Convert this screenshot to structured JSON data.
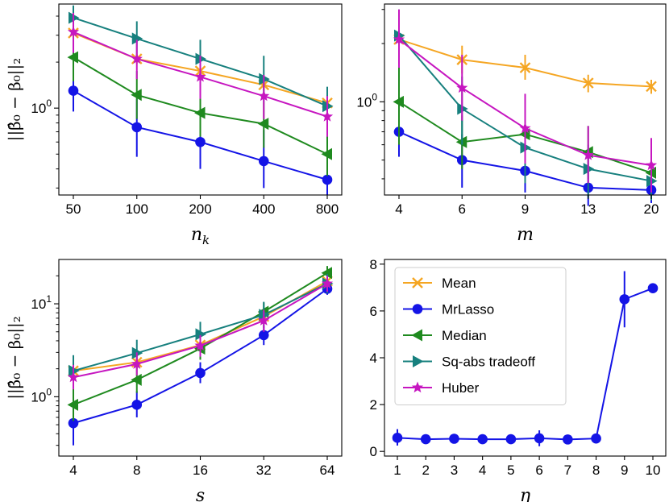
{
  "colors": {
    "Mean": "#f5a623",
    "MrLasso": "#1414e6",
    "Median": "#1f8a1f",
    "Sq-abs tradeoff": "#17807e",
    "Huber": "#c616c0"
  },
  "markers": {
    "Mean": "x",
    "MrLasso": "circle",
    "Median": "tri-left",
    "Sq-abs tradeoff": "tri-right",
    "Huber": "star"
  },
  "chart_data": [
    {
      "id": "p1",
      "type": "line",
      "yscale": "log",
      "ylim": [
        0.27,
        4.8
      ],
      "xlabel": "n_k",
      "ylabel": "||β̂₀ − β₀||₂",
      "categories": [
        "50",
        "100",
        "200",
        "400",
        "800"
      ],
      "yticks": [
        {
          "value": 1,
          "label": "10^0"
        }
      ],
      "series": [
        {
          "name": "Mean",
          "values": [
            3.1,
            2.1,
            1.75,
            1.42,
            1.08
          ],
          "err": [
            [
              2.9,
              3.3
            ],
            [
              1.95,
              2.25
            ],
            [
              1.6,
              1.9
            ],
            [
              1.3,
              1.55
            ],
            [
              0.98,
              1.2
            ]
          ]
        },
        {
          "name": "MrLasso",
          "values": [
            1.3,
            0.75,
            0.6,
            0.45,
            0.34
          ],
          "err": [
            [
              0.95,
              1.85
            ],
            [
              0.48,
              1.15
            ],
            [
              0.4,
              0.9
            ],
            [
              0.3,
              0.72
            ],
            [
              0.27,
              0.43
            ]
          ]
        },
        {
          "name": "Median",
          "values": [
            2.15,
            1.22,
            0.93,
            0.79,
            0.5
          ],
          "err": [
            [
              1.5,
              3.0
            ],
            [
              0.85,
              1.75
            ],
            [
              0.65,
              1.3
            ],
            [
              0.55,
              1.1
            ],
            [
              0.36,
              0.7
            ]
          ]
        },
        {
          "name": "Sq-abs tradeoff",
          "values": [
            3.9,
            2.85,
            2.1,
            1.55,
            1.03
          ],
          "err": [
            [
              2.9,
              4.7
            ],
            [
              2.1,
              3.7
            ],
            [
              1.55,
              2.8
            ],
            [
              1.1,
              2.2
            ],
            [
              0.75,
              1.38
            ]
          ]
        },
        {
          "name": "Huber",
          "values": [
            3.15,
            2.1,
            1.6,
            1.2,
            0.88
          ],
          "err": [
            [
              2.3,
              4.2
            ],
            [
              1.55,
              2.8
            ],
            [
              1.15,
              2.2
            ],
            [
              0.85,
              1.65
            ],
            [
              0.65,
              1.2
            ]
          ]
        }
      ]
    },
    {
      "id": "p2",
      "type": "line",
      "yscale": "log",
      "ylim": [
        0.33,
        3.2
      ],
      "xlabel": "m",
      "ylabel": "",
      "categories": [
        "4",
        "6",
        "9",
        "13",
        "20"
      ],
      "yticks": [
        {
          "value": 1,
          "label": "10^0"
        }
      ],
      "series": [
        {
          "name": "Mean",
          "values": [
            2.1,
            1.65,
            1.5,
            1.25,
            1.2
          ],
          "err": [
            [
              1.95,
              2.3
            ],
            [
              1.4,
              1.95
            ],
            [
              1.3,
              1.75
            ],
            [
              1.12,
              1.38
            ],
            [
              1.1,
              1.3
            ]
          ]
        },
        {
          "name": "MrLasso",
          "values": [
            0.7,
            0.5,
            0.44,
            0.36,
            0.35
          ],
          "err": [
            [
              0.52,
              0.95
            ],
            [
              0.36,
              0.68
            ],
            [
              0.34,
              0.58
            ],
            [
              0.29,
              0.44
            ],
            [
              0.3,
              0.4
            ]
          ]
        },
        {
          "name": "Median",
          "values": [
            1.0,
            0.62,
            0.68,
            0.55,
            0.43
          ],
          "err": [
            [
              0.6,
              1.55
            ],
            [
              0.45,
              0.85
            ],
            [
              0.52,
              0.88
            ],
            [
              0.4,
              0.75
            ],
            [
              0.32,
              0.58
            ]
          ]
        },
        {
          "name": "Sq-abs tradeoff",
          "values": [
            2.2,
            0.92,
            0.58,
            0.45,
            0.39
          ],
          "err": [
            [
              1.6,
              3.0
            ],
            [
              0.6,
              1.35
            ],
            [
              0.38,
              0.85
            ],
            [
              0.32,
              0.6
            ],
            [
              0.31,
              0.5
            ]
          ]
        },
        {
          "name": "Huber",
          "values": [
            2.1,
            1.18,
            0.73,
            0.53,
            0.47
          ],
          "err": [
            [
              1.5,
              3.0
            ],
            [
              0.8,
              1.75
            ],
            [
              0.48,
              1.1
            ],
            [
              0.38,
              0.75
            ],
            [
              0.34,
              0.65
            ]
          ]
        }
      ]
    },
    {
      "id": "p3",
      "type": "line",
      "yscale": "log",
      "ylim": [
        0.23,
        30
      ],
      "xlabel": "s",
      "ylabel": "||β̂₀ − β₀||₂",
      "categories": [
        "4",
        "8",
        "16",
        "32",
        "64"
      ],
      "yticks": [
        {
          "value": 1,
          "label": "10^0"
        },
        {
          "value": 10,
          "label": "10^1"
        }
      ],
      "series": [
        {
          "name": "Mean",
          "values": [
            1.9,
            2.35,
            3.6,
            7.3,
            17.5
          ],
          "err": [
            [
              1.6,
              2.3
            ],
            [
              2.0,
              2.8
            ],
            [
              3.1,
              4.2
            ],
            [
              6.3,
              8.4
            ],
            [
              15.5,
              19.5
            ]
          ]
        },
        {
          "name": "MrLasso",
          "values": [
            0.52,
            0.82,
            1.8,
            4.6,
            14.5
          ],
          "err": [
            [
              0.3,
              0.9
            ],
            [
              0.6,
              1.15
            ],
            [
              1.4,
              2.35
            ],
            [
              3.6,
              5.9
            ],
            [
              12.5,
              17.0
            ]
          ]
        },
        {
          "name": "Median",
          "values": [
            0.82,
            1.52,
            3.3,
            8.2,
            21.5
          ],
          "err": [
            [
              0.55,
              1.25
            ],
            [
              1.1,
              2.1
            ],
            [
              2.5,
              4.3
            ],
            [
              6.5,
              10.3
            ],
            [
              18.0,
              25.5
            ]
          ]
        },
        {
          "name": "Sq-abs tradeoff",
          "values": [
            1.9,
            2.95,
            4.7,
            7.6,
            16.5
          ],
          "err": [
            [
              1.3,
              2.8
            ],
            [
              2.1,
              4.1
            ],
            [
              3.4,
              6.4
            ],
            [
              5.5,
              10.5
            ],
            [
              13.0,
              21.0
            ]
          ]
        },
        {
          "name": "Huber",
          "values": [
            1.62,
            2.25,
            3.55,
            6.6,
            16.5
          ],
          "err": [
            [
              1.2,
              2.2
            ],
            [
              1.7,
              3.0
            ],
            [
              2.7,
              4.6
            ],
            [
              5.0,
              8.6
            ],
            [
              13.5,
              20.0
            ]
          ]
        }
      ]
    },
    {
      "id": "p4",
      "type": "line",
      "yscale": "linear",
      "ylim": [
        -0.2,
        8.2
      ],
      "xlabel": "η",
      "ylabel": "",
      "categories": [
        "1",
        "2",
        "3",
        "4",
        "5",
        "6",
        "7",
        "8",
        "9",
        "10"
      ],
      "yticks": [
        {
          "value": 0,
          "label": "0"
        },
        {
          "value": 2,
          "label": "2"
        },
        {
          "value": 4,
          "label": "4"
        },
        {
          "value": 6,
          "label": "6"
        },
        {
          "value": 8,
          "label": "8"
        }
      ],
      "series": [
        {
          "name": "MrLasso",
          "values": [
            0.58,
            0.52,
            0.54,
            0.52,
            0.52,
            0.56,
            0.51,
            0.55,
            6.5,
            6.97
          ],
          "err": [
            [
              0.25,
              0.95
            ],
            [
              0.45,
              0.6
            ],
            [
              0.45,
              0.63
            ],
            [
              0.45,
              0.6
            ],
            [
              0.45,
              0.6
            ],
            [
              0.22,
              0.9
            ],
            [
              0.45,
              0.58
            ],
            [
              0.48,
              0.62
            ],
            [
              5.3,
              7.7
            ],
            [
              6.9,
              7.05
            ]
          ]
        }
      ],
      "legend": {
        "placement": "upper-left",
        "entries": [
          "Mean",
          "MrLasso",
          "Median",
          "Sq-abs tradeoff",
          "Huber"
        ]
      }
    }
  ]
}
